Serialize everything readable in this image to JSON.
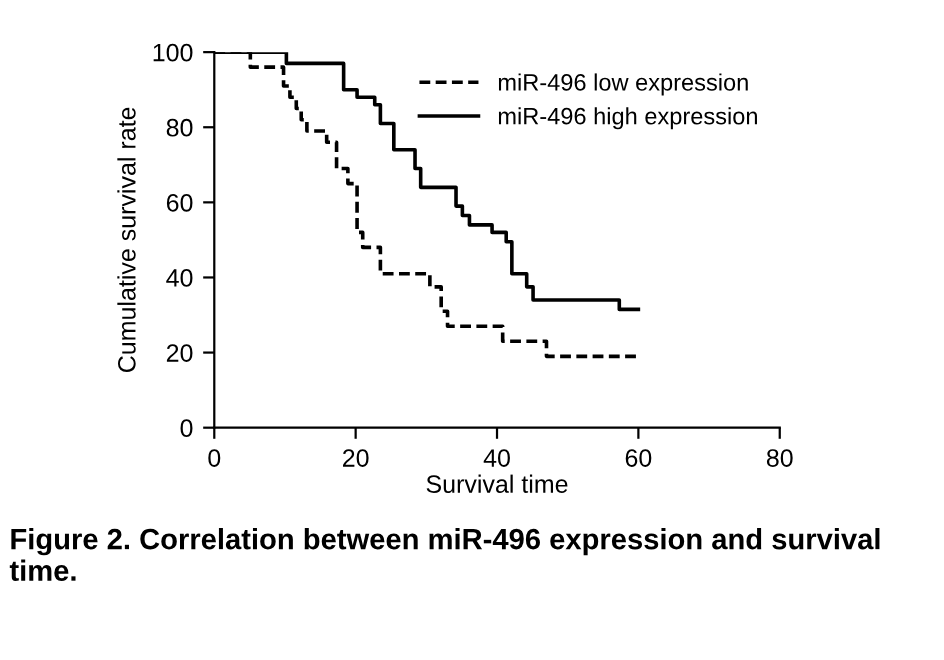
{
  "chart_data": {
    "type": "step",
    "xlabel": "Survival time",
    "ylabel": "Cumulative survival rate",
    "xlim": [
      0,
      80
    ],
    "ylim": [
      0,
      100
    ],
    "xticks": [
      0,
      20,
      40,
      60,
      80
    ],
    "yticks": [
      0,
      20,
      40,
      60,
      80,
      100
    ],
    "grid": false,
    "legend": "top right",
    "marker": "none",
    "series": [
      {
        "name": "miR-496 low expression",
        "color": "#000000",
        "line_style": "dashed",
        "x": [
          0,
          5.1,
          9.8,
          10.7,
          11.6,
          12.3,
          13.1,
          15.9,
          17.3,
          18.9,
          20.2,
          21,
          23.5,
          30.5,
          32.1,
          33,
          40.8,
          47,
          60
        ],
        "values": [
          100,
          96,
          91,
          88,
          85,
          82,
          79,
          76,
          69,
          65,
          52,
          48,
          41,
          37.5,
          31,
          27,
          23,
          19,
          19
        ]
      },
      {
        "name": "miR-496 high expression",
        "color": "#000000",
        "line_style": "solid",
        "x": [
          0,
          10.2,
          18.3,
          20.2,
          22.7,
          23.5,
          25.4,
          28.4,
          29.2,
          34.2,
          35.1,
          36.1,
          39.3,
          41.3,
          42.1,
          44.2,
          45.1,
          57.3,
          60
        ],
        "values": [
          100,
          97,
          90,
          88,
          86,
          81,
          74,
          69,
          64,
          59,
          56.5,
          54,
          52,
          49.5,
          41,
          37.5,
          34,
          31.5,
          31.5
        ]
      }
    ],
    "annotations": [
      "Figure 2. Correlation between miR-496 expression and survival time."
    ]
  }
}
